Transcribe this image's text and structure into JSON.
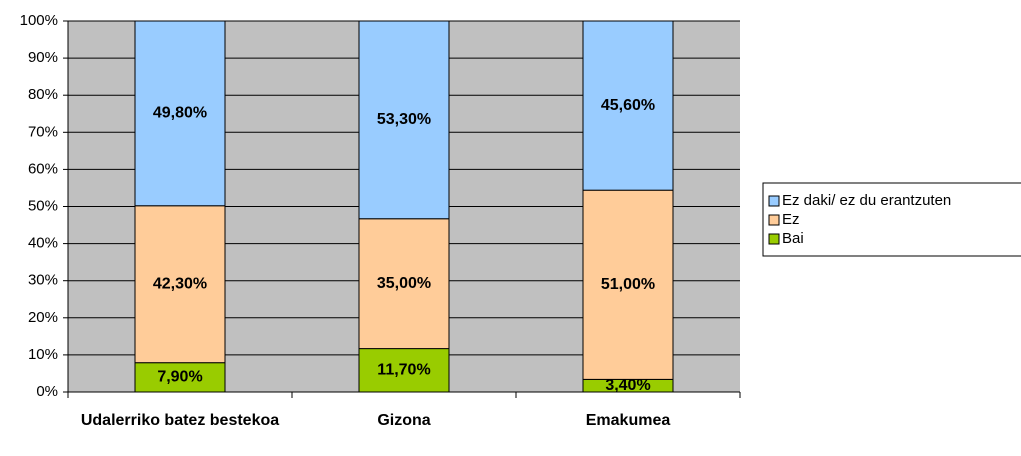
{
  "chart_data": {
    "type": "stacked_bar",
    "categories": [
      "Udalerriko batez bestekoa",
      "Gizona",
      "Emakumea"
    ],
    "series": [
      {
        "name": "Bai",
        "color": "#99cc00",
        "values": [
          7.9,
          11.7,
          3.4
        ],
        "value_labels": [
          "7,90%",
          "11,70%",
          "3,40%"
        ]
      },
      {
        "name": "Ez",
        "color": "#ffcc99",
        "values": [
          42.3,
          35.0,
          51.0
        ],
        "value_labels": [
          "42,30%",
          "35,00%",
          "51,00%"
        ]
      },
      {
        "name": "Ez daki/ ez du erantzuten",
        "color": "#99ccff",
        "values": [
          49.8,
          53.3,
          45.6
        ],
        "value_labels": [
          "49,80%",
          "53,30%",
          "45,60%"
        ]
      }
    ],
    "ylim": [
      0,
      100
    ],
    "yticks": [
      {
        "value": 0,
        "label": "0%"
      },
      {
        "value": 10,
        "label": "10%"
      },
      {
        "value": 20,
        "label": "20%"
      },
      {
        "value": 30,
        "label": "30%"
      },
      {
        "value": 40,
        "label": "40%"
      },
      {
        "value": 50,
        "label": "50%"
      },
      {
        "value": 60,
        "label": "60%"
      },
      {
        "value": 70,
        "label": "70%"
      },
      {
        "value": 80,
        "label": "80%"
      },
      {
        "value": 90,
        "label": "90%"
      },
      {
        "value": 100,
        "label": "100%"
      }
    ],
    "grid": true,
    "legend": "right"
  }
}
